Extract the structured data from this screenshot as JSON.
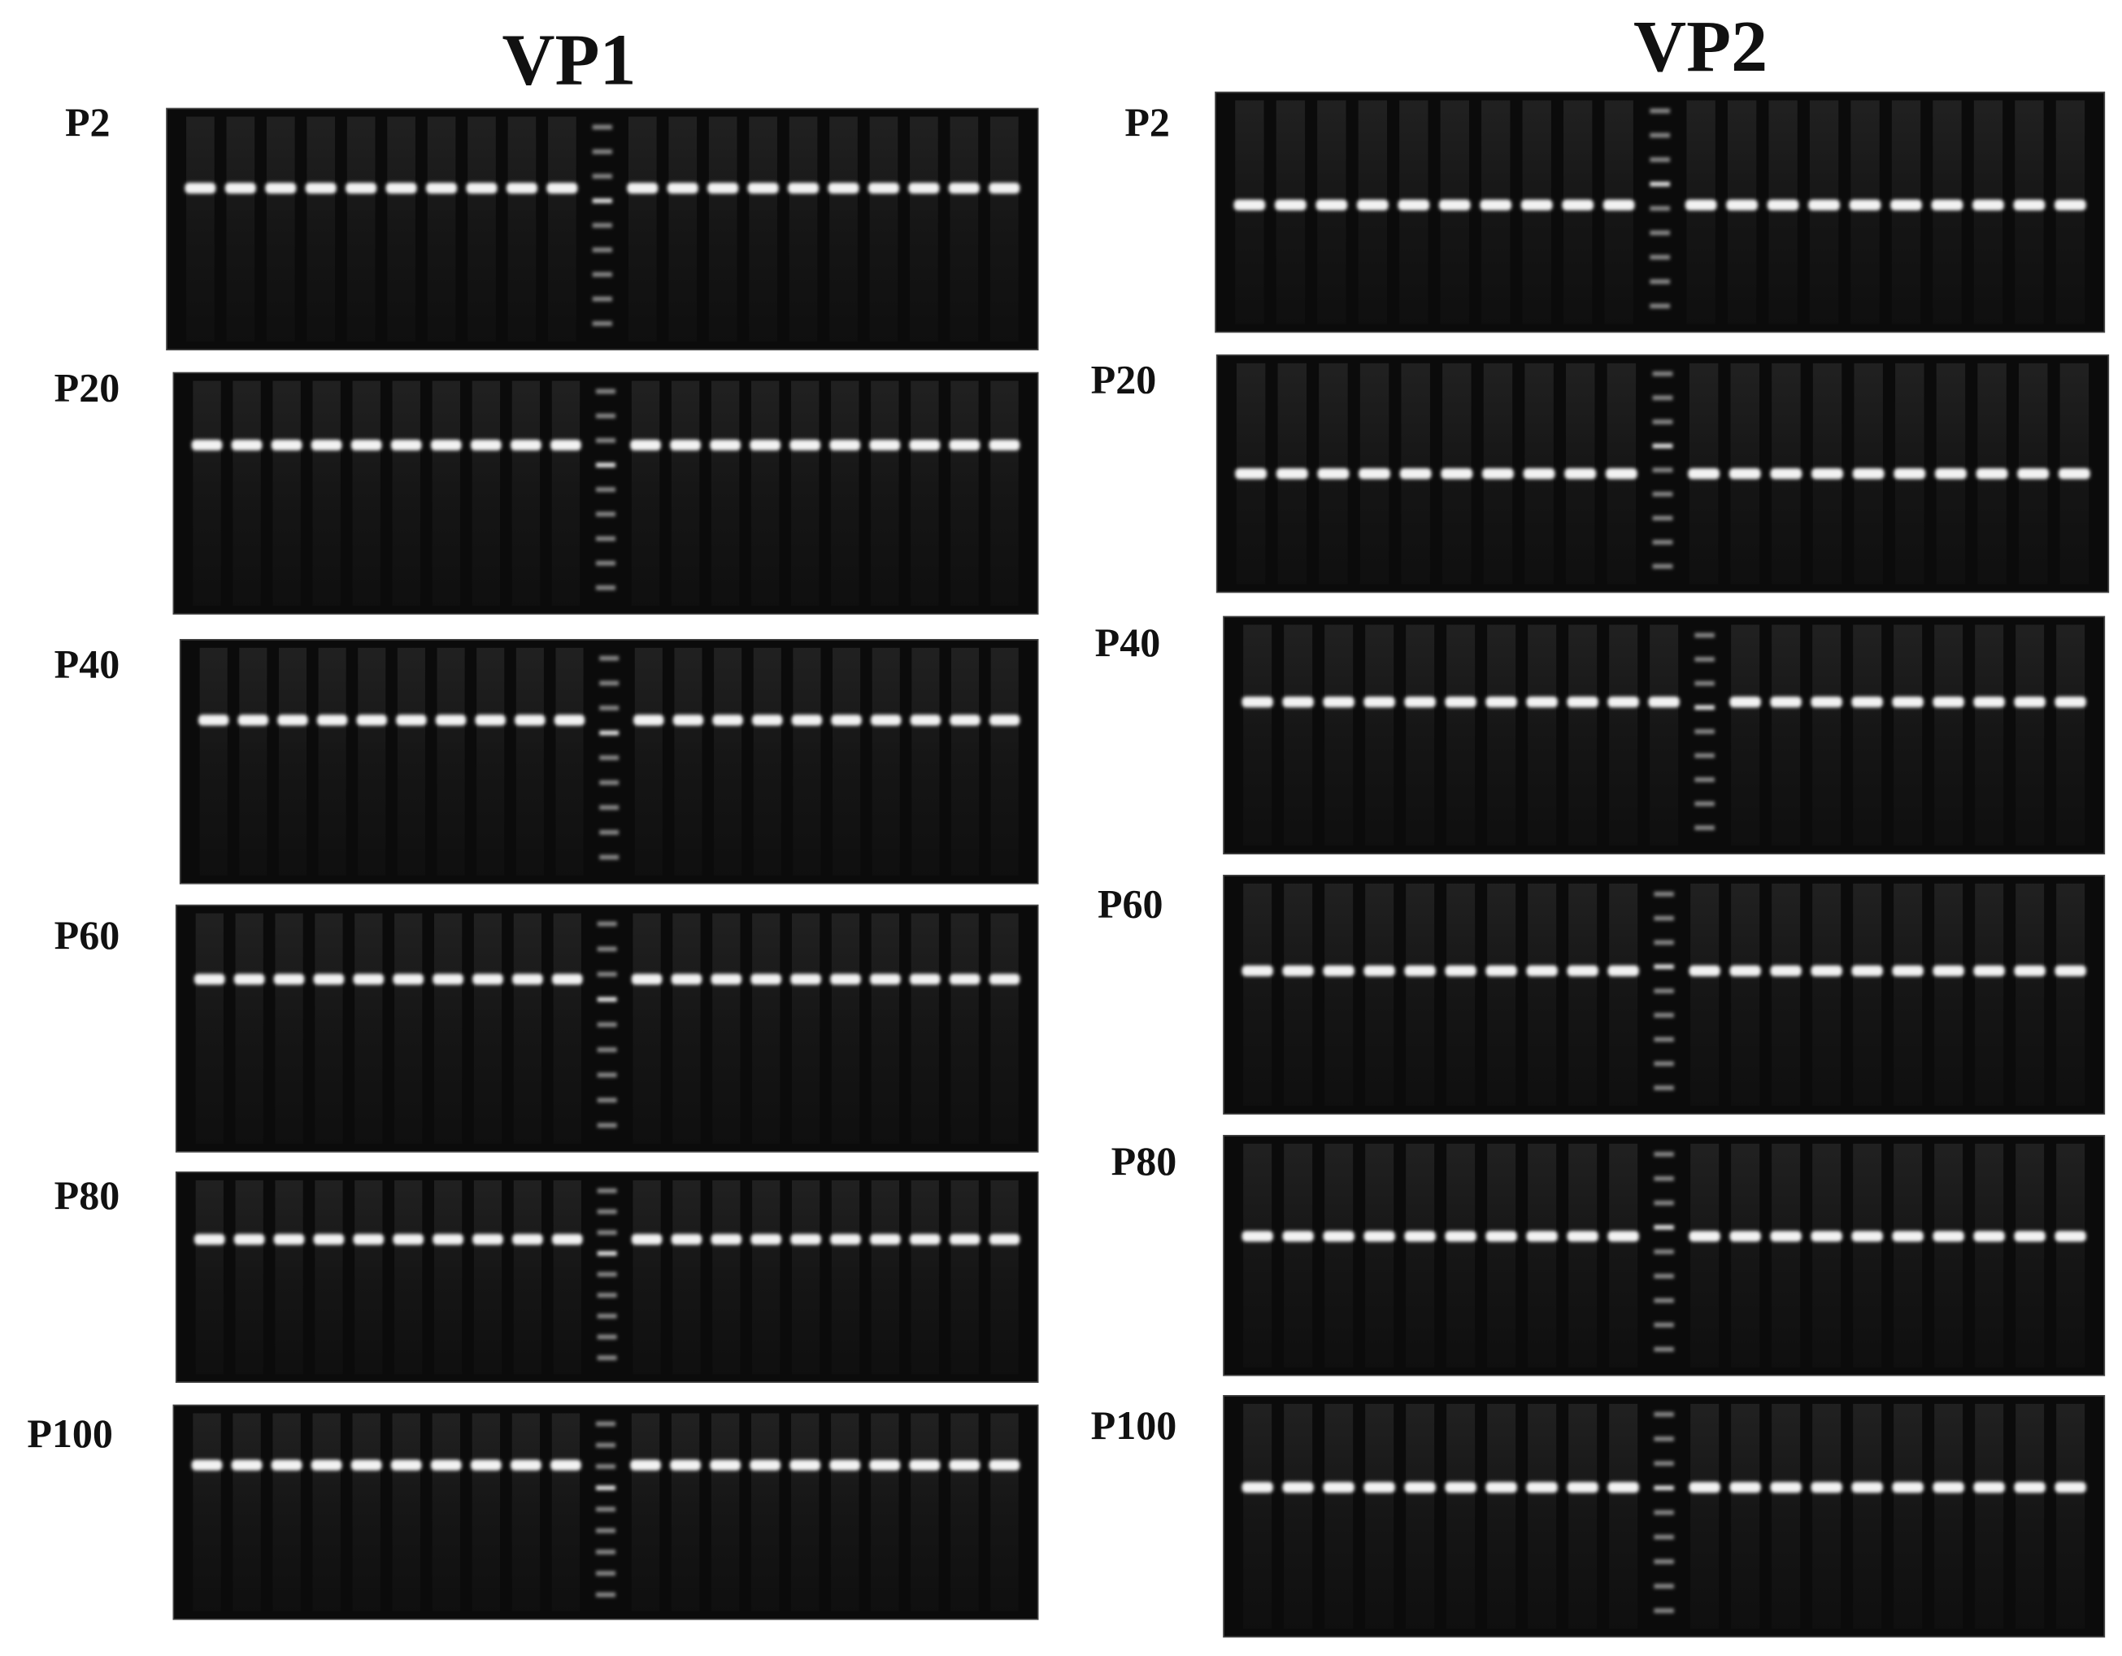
{
  "figure": {
    "columns": [
      {
        "title": "VP1",
        "panels": [
          {
            "label": "P2"
          },
          {
            "label": "P20"
          },
          {
            "label": "P40"
          },
          {
            "label": "P60"
          },
          {
            "label": "P80"
          },
          {
            "label": "P100"
          }
        ]
      },
      {
        "title": "VP2",
        "panels": [
          {
            "label": "P2"
          },
          {
            "label": "P20"
          },
          {
            "label": "P40"
          },
          {
            "label": "P60"
          },
          {
            "label": "P80"
          },
          {
            "label": "P100"
          }
        ]
      }
    ]
  }
}
